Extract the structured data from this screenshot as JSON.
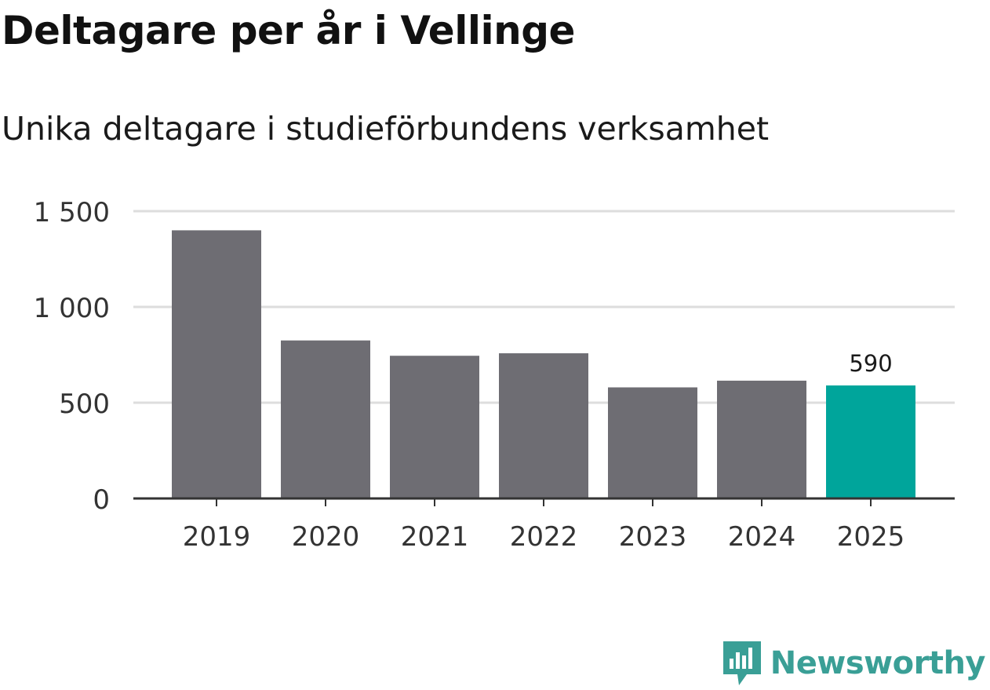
{
  "title": "Deltagare per år i Vellinge",
  "subtitle": "Unika deltagare i studieförbundens verksamhet",
  "brand": {
    "name": "Newsworthy",
    "icon": "newsworthy-logo-icon",
    "color": "#3a9f96"
  },
  "chart_data": {
    "type": "bar",
    "title": "Deltagare per år i Vellinge",
    "subtitle": "Unika deltagare i studieförbundens verksamhet",
    "xlabel": "",
    "ylabel": "",
    "categories": [
      "2019",
      "2020",
      "2021",
      "2022",
      "2023",
      "2024",
      "2025"
    ],
    "values": [
      1400,
      825,
      745,
      758,
      580,
      615,
      590
    ],
    "ylim": [
      0,
      1500
    ],
    "yticks": [
      0,
      500,
      1000,
      1500
    ],
    "ytick_labels": [
      "0",
      "500",
      "1 000",
      "1 500"
    ],
    "grid": true,
    "highlight_index": 6,
    "data_labels": [
      {
        "index": 6,
        "text": "590"
      }
    ],
    "colors": {
      "bar": "#6e6d73",
      "highlight": "#00a59b",
      "grid": "#dddddd",
      "axis": "#333333",
      "tick_text": "#333333"
    }
  }
}
